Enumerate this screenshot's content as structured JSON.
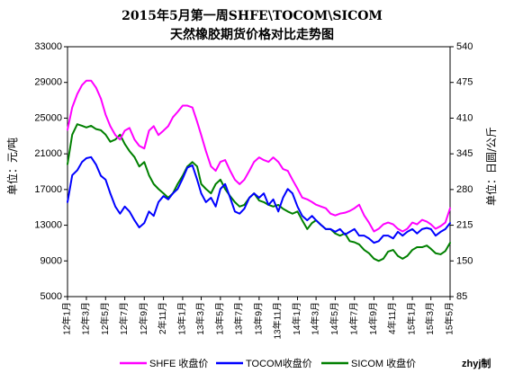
{
  "chart_data": {
    "type": "line",
    "title": "2015年5月第一周SHFE\\TOCOM\\SICOM",
    "subtitle": "天然橡胶期货价格对比走势图",
    "ylabel": "单位：元/吨",
    "ylabel_right": "单位：日圆/公斤",
    "ylim": [
      5000,
      33000
    ],
    "ylim_right": [
      85,
      540
    ],
    "yticks": [
      5000,
      9000,
      13000,
      17000,
      21000,
      25000,
      29000,
      33000
    ],
    "yticks_right": [
      85,
      150,
      215,
      280,
      345,
      410,
      475,
      540
    ],
    "xlim": [
      "2012-01-01",
      "2015-05-01"
    ],
    "xticks": [
      "2012-01-01",
      "2012-03-01",
      "2012-05-01",
      "2012-07-01",
      "2012-09-01",
      "2012-11-01",
      "2013-01-01",
      "2013-03-01",
      "2013-05-01",
      "2013-07-01",
      "2013-09-01",
      "2013-11-01",
      "2014-01-01",
      "2014-03-01",
      "2014-05-01",
      "2014-07-01",
      "2014-09-01",
      "2014-11-01",
      "2015-01-01",
      "2015-03-01",
      "2015-05-01"
    ],
    "xtick_labels": [
      "12年1月",
      "12年3月",
      "12年5月",
      "12年7月",
      "12年9月",
      "2年11月",
      "13年1月",
      "13年3月",
      "13年5月",
      "13年7月",
      "13年9月",
      "13年11月",
      "14年1月",
      "14年3月",
      "14年5月",
      "14年7月",
      "14年9月",
      "4年11月",
      "15年1月",
      "15年3月",
      "15年5月"
    ],
    "grid": false,
    "legend_position": "bottom",
    "x": [
      "2012-01-01",
      "2012-01-16",
      "2012-02-01",
      "2012-02-16",
      "2012-03-01",
      "2012-03-16",
      "2012-04-01",
      "2012-04-16",
      "2012-05-01",
      "2012-05-16",
      "2012-06-01",
      "2012-06-16",
      "2012-07-01",
      "2012-07-16",
      "2012-08-01",
      "2012-08-16",
      "2012-09-01",
      "2012-09-16",
      "2012-10-01",
      "2012-10-16",
      "2012-11-01",
      "2012-11-16",
      "2012-12-01",
      "2012-12-16",
      "2013-01-01",
      "2013-01-16",
      "2013-02-01",
      "2013-02-16",
      "2013-03-01",
      "2013-03-16",
      "2013-04-01",
      "2013-04-16",
      "2013-05-01",
      "2013-05-16",
      "2013-06-01",
      "2013-06-16",
      "2013-07-01",
      "2013-07-16",
      "2013-08-01",
      "2013-08-16",
      "2013-09-01",
      "2013-09-16",
      "2013-10-01",
      "2013-10-16",
      "2013-11-01",
      "2013-11-16",
      "2013-12-01",
      "2013-12-16",
      "2014-01-01",
      "2014-01-16",
      "2014-02-01",
      "2014-02-16",
      "2014-03-01",
      "2014-03-16",
      "2014-04-01",
      "2014-04-16",
      "2014-05-01",
      "2014-05-16",
      "2014-06-01",
      "2014-06-16",
      "2014-07-01",
      "2014-07-16",
      "2014-08-01",
      "2014-08-16",
      "2014-09-01",
      "2014-09-16",
      "2014-10-01",
      "2014-10-16",
      "2014-11-01",
      "2014-11-16",
      "2014-12-01",
      "2014-12-16",
      "2015-01-01",
      "2015-01-16",
      "2015-02-01",
      "2015-02-16",
      "2015-03-01",
      "2015-03-16",
      "2015-04-01",
      "2015-04-16",
      "2015-05-01"
    ],
    "series": [
      {
        "name": "SHFE 收盘价",
        "color": "#ff00ff",
        "axis": "left",
        "values": [
          23700,
          26200,
          27700,
          28700,
          29200,
          29200,
          28400,
          27200,
          25400,
          24100,
          23100,
          22600,
          23600,
          23900,
          22600,
          21900,
          21600,
          23600,
          24100,
          23100,
          23600,
          24100,
          25100,
          25700,
          26400,
          26400,
          26200,
          24600,
          23100,
          21300,
          19600,
          19100,
          20100,
          20300,
          19100,
          18100,
          17600,
          18100,
          19100,
          20100,
          20600,
          20300,
          20100,
          20600,
          20100,
          19300,
          19100,
          18100,
          17100,
          16100,
          15900,
          15600,
          15300,
          15100,
          14900,
          14300,
          14100,
          14300,
          14400,
          14600,
          14900,
          15300,
          14100,
          13300,
          12300,
          12600,
          13100,
          13300,
          13100,
          12600,
          12300,
          12600,
          13300,
          13100,
          13600,
          13400,
          13100,
          12600,
          12900,
          13300,
          14900
        ]
      },
      {
        "name": "TOCOM收盘价",
        "color": "#0000ff",
        "axis": "right",
        "values": [
          257,
          306,
          315,
          330,
          337,
          339,
          325,
          305,
          298,
          273,
          249,
          236,
          249,
          240,
          224,
          211,
          219,
          240,
          232,
          257,
          268,
          262,
          273,
          281,
          300,
          320,
          324,
          298,
          273,
          257,
          265,
          249,
          281,
          290,
          265,
          240,
          236,
          245,
          265,
          273,
          265,
          273,
          252,
          262,
          240,
          265,
          281,
          273,
          249,
          232,
          224,
          232,
          224,
          216,
          208,
          208,
          203,
          208,
          198,
          203,
          208,
          196,
          196,
          191,
          183,
          186,
          196,
          196,
          191,
          203,
          196,
          203,
          208,
          200,
          208,
          210,
          208,
          196,
          203,
          208,
          219
        ]
      },
      {
        "name": "SICOM 收盘价",
        "color": "#008000",
        "axis": "right",
        "values": [
          326,
          380,
          399,
          396,
          393,
          396,
          390,
          388,
          380,
          367,
          371,
          380,
          363,
          350,
          339,
          322,
          330,
          306,
          290,
          281,
          273,
          265,
          273,
          290,
          305,
          322,
          330,
          322,
          290,
          281,
          273,
          290,
          298,
          281,
          268,
          257,
          249,
          252,
          265,
          273,
          260,
          257,
          252,
          249,
          252,
          245,
          240,
          236,
          240,
          224,
          208,
          219,
          224,
          216,
          208,
          208,
          200,
          196,
          200,
          186,
          184,
          180,
          170,
          164,
          154,
          150,
          154,
          167,
          170,
          159,
          154,
          159,
          170,
          175,
          175,
          178,
          172,
          164,
          162,
          168,
          183
        ]
      }
    ]
  },
  "credit": "zhyj制"
}
